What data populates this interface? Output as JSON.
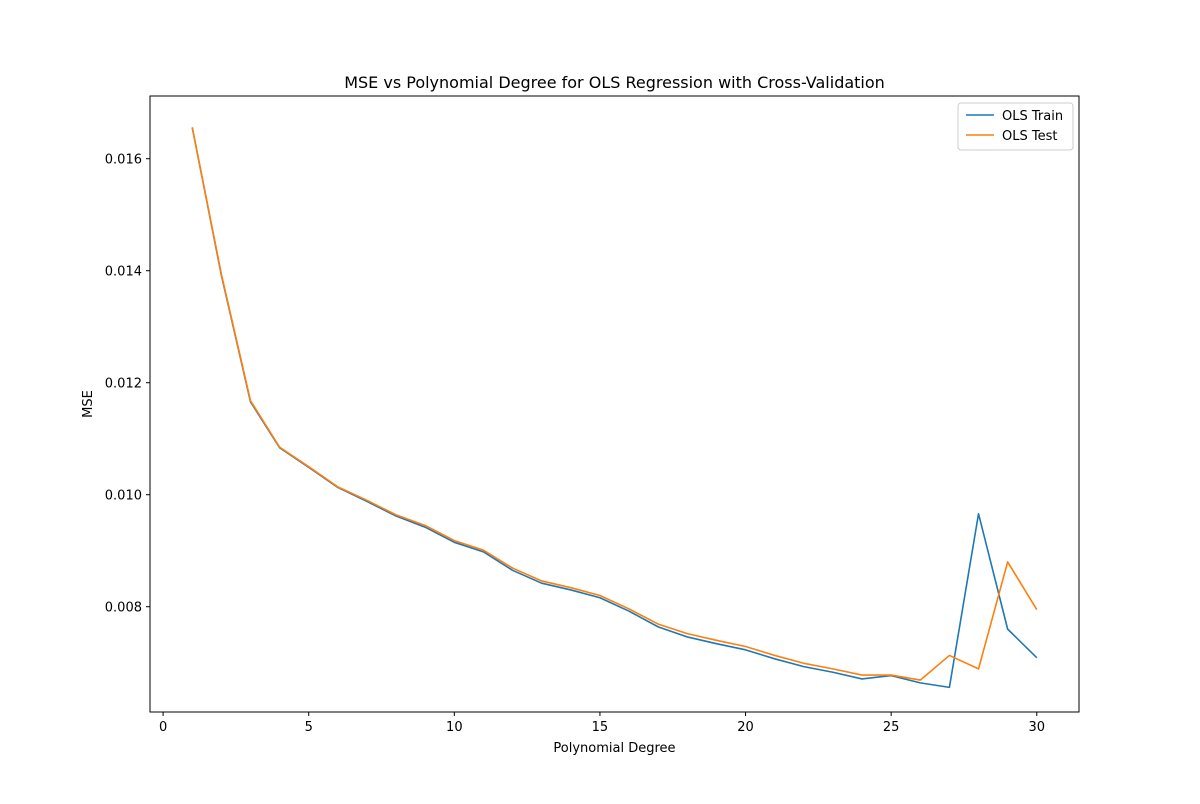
{
  "chart_data": {
    "type": "line",
    "title": "MSE vs Polynomial Degree for OLS Regression with Cross-Validation",
    "xlabel": "Polynomial Degree",
    "ylabel": "MSE",
    "xlim": [
      -0.45,
      31.45
    ],
    "ylim": [
      0.00612,
      0.01712
    ],
    "xticks": [
      0,
      5,
      10,
      15,
      20,
      25,
      30
    ],
    "yticks": [
      0.008,
      0.01,
      0.012,
      0.014,
      0.016
    ],
    "ytick_labels": [
      "0.008",
      "0.010",
      "0.012",
      "0.014",
      "0.016"
    ],
    "grid": false,
    "legend_position": "top-right",
    "x": [
      1,
      2,
      3,
      4,
      5,
      6,
      7,
      8,
      9,
      10,
      11,
      12,
      13,
      14,
      15,
      16,
      17,
      18,
      19,
      20,
      21,
      22,
      23,
      24,
      25,
      26,
      27,
      28,
      29,
      30
    ],
    "series": [
      {
        "name": "OLS Train",
        "color": "#1f77b4",
        "values": [
          0.01656,
          0.01392,
          0.01166,
          0.01084,
          0.01049,
          0.01013,
          0.00988,
          0.00962,
          0.00942,
          0.00915,
          0.00898,
          0.00865,
          0.00842,
          0.0083,
          0.00816,
          0.00792,
          0.00764,
          0.00746,
          0.00734,
          0.00723,
          0.00707,
          0.00693,
          0.00683,
          0.00671,
          0.00677,
          0.00664,
          0.00656,
          0.00966,
          0.0076,
          0.00709
        ]
      },
      {
        "name": "OLS Test",
        "color": "#ff7f0e",
        "values": [
          0.01656,
          0.01394,
          0.01168,
          0.01085,
          0.0105,
          0.01014,
          0.0099,
          0.00964,
          0.00945,
          0.00918,
          0.00901,
          0.00869,
          0.00846,
          0.00834,
          0.0082,
          0.00796,
          0.00769,
          0.00752,
          0.0074,
          0.00729,
          0.00713,
          0.00699,
          0.00689,
          0.00678,
          0.00678,
          0.00669,
          0.00713,
          0.00689,
          0.0088,
          0.00795
        ]
      }
    ]
  }
}
